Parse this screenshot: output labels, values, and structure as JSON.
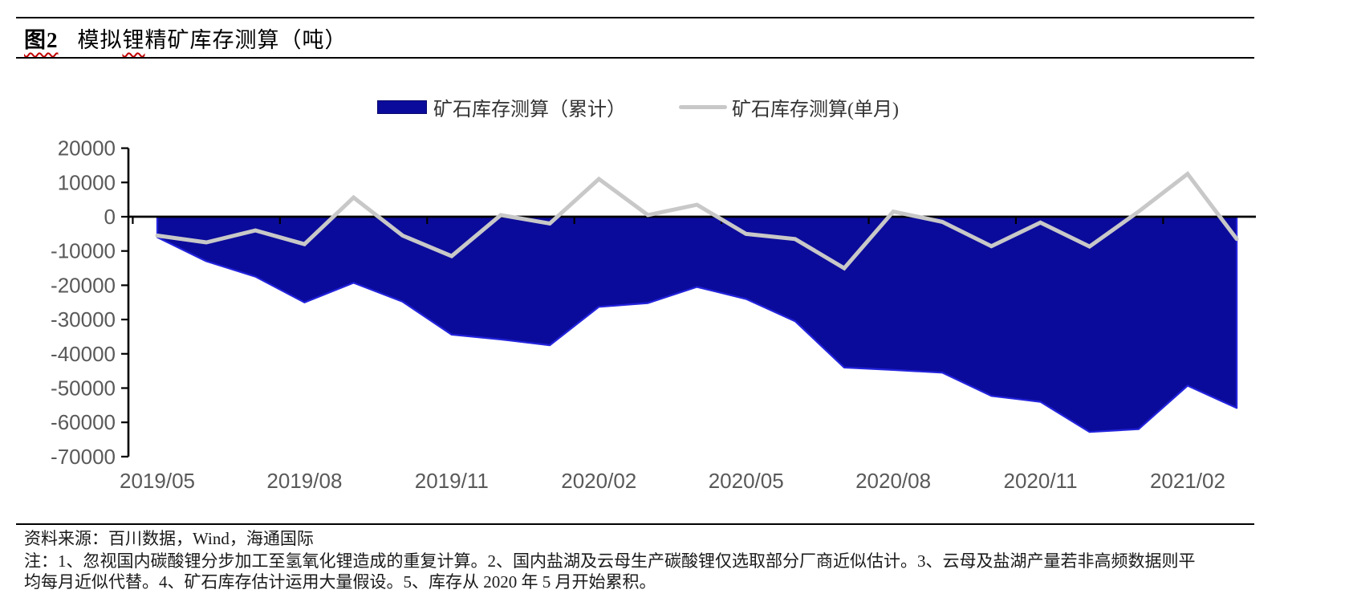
{
  "title": {
    "figure_label": "图2",
    "text_pre": "模拟",
    "text_wavy": "锂",
    "text_post": "精矿库存测算（吨）"
  },
  "legend": {
    "cumulative_label": "矿石库存测算（累计）",
    "monthly_label": "矿石库存测算(单月)"
  },
  "colors": {
    "area_fill": "#0B0B9B",
    "area_edge": "#2323DC",
    "monthly_line": "#C8C8C8",
    "axis": "#000000",
    "tick_label": "#595959",
    "wavy_underline": "#C00000"
  },
  "chart_data": {
    "type": "area+line",
    "x": [
      "2019/05",
      "2019/06",
      "2019/07",
      "2019/08",
      "2019/09",
      "2019/10",
      "2019/11",
      "2019/12",
      "2020/01",
      "2020/02",
      "2020/03",
      "2020/04",
      "2020/05",
      "2020/06",
      "2020/07",
      "2020/08",
      "2020/09",
      "2020/10",
      "2020/11",
      "2020/12",
      "2021/01",
      "2021/02",
      "2021/03"
    ],
    "x_tick_every": 3,
    "x_tick_labels": [
      "2019/05",
      "2019/08",
      "2019/11",
      "2020/02",
      "2020/05",
      "2020/08",
      "2020/11",
      "2021/02"
    ],
    "ylim": [
      -70000,
      20000
    ],
    "ytick_step": 10000,
    "y_tick_labels": [
      "20000",
      "10000",
      "0",
      "-10000",
      "-20000",
      "-30000",
      "-40000",
      "-50000",
      "-60000",
      "-70000"
    ],
    "series": [
      {
        "name": "矿石库存测算（累计）",
        "type": "area",
        "values": [
          -6000,
          -13000,
          -17500,
          -25000,
          -19300,
          -24800,
          -34400,
          -35800,
          -37500,
          -26300,
          -25200,
          -20500,
          -24000,
          -30500,
          -44000,
          -44700,
          -45500,
          -52300,
          -54000,
          -62800,
          -62000,
          -49300,
          -55800
        ]
      },
      {
        "name": "矿石库存测算(单月)",
        "type": "line",
        "values": [
          -5500,
          -7500,
          -4000,
          -8000,
          5600,
          -5500,
          -11500,
          500,
          -2000,
          11000,
          500,
          3500,
          -5000,
          -6500,
          -15000,
          1500,
          -1500,
          -8600,
          -1700,
          -8700,
          1500,
          12500,
          -6500
        ]
      }
    ],
    "grid": false,
    "legend_position": "top-center"
  },
  "footer": {
    "source": "资料来源：百川数据，Wind，海通国际",
    "note_line1": "注：1、忽视国内碳酸锂分步加工至氢氧化锂造成的重复计算。2、国内盐湖及云母生产碳酸锂仅选取部分厂商近似估计。3、云母及盐湖产量若非高频数据则平",
    "note_line2": "均每月近似代替。4、矿石库存估计运用大量假设。5、库存从 2020 年 5 月开始累积。"
  }
}
